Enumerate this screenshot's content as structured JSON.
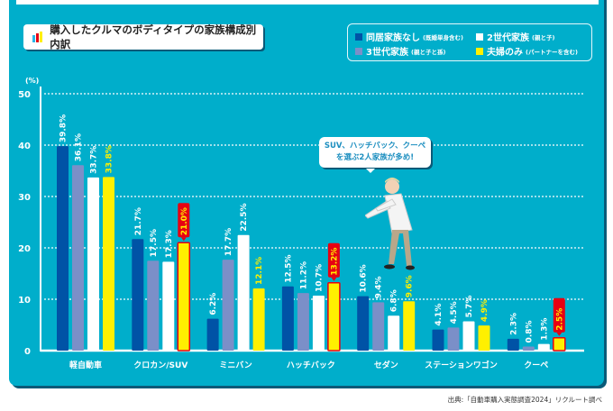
{
  "title": "購入したクルマのボディタイプの家族構成別内訳",
  "legend": [
    {
      "label": "同居家族なし",
      "note": "(既婚単身含む)",
      "color": "#0053a6"
    },
    {
      "label": "2世代家族",
      "note": "(親と子)",
      "color": "#ffffff"
    },
    {
      "label": "3世代家族",
      "note": "(親と子と孫)",
      "color": "#7b8fc8"
    },
    {
      "label": "夫婦のみ",
      "note": "(パートナーを含む)",
      "color": "#fff000"
    }
  ],
  "callout": {
    "line1": "SUV、ハッチバック、クーペ",
    "line2": "を選ぶ2人家族が多め!"
  },
  "source": "出典:「自動車購入実態調査2024」リクルート調べ",
  "chart_data": {
    "type": "bar",
    "title": "購入したクルマのボディタイプの家族構成別内訳",
    "ylabel": "(%)",
    "ylim": [
      0,
      50
    ],
    "yticks": [
      "0",
      "10",
      "20",
      "30",
      "40",
      "50"
    ],
    "grid": true,
    "legend_position": "top-right",
    "categories": [
      "軽自動車",
      "クロカン/SUV",
      "ミニバン",
      "ハッチバック",
      "セダン",
      "ステーションワゴン",
      "クーペ"
    ],
    "series": [
      {
        "name": "同居家族なし",
        "color": "#0053a6",
        "values": [
          39.8,
          21.7,
          6.2,
          12.5,
          10.6,
          4.1,
          2.3
        ]
      },
      {
        "name": "3世代家族",
        "color": "#7b8fc8",
        "values": [
          36.1,
          17.5,
          17.7,
          11.2,
          9.4,
          4.5,
          0.8
        ]
      },
      {
        "name": "2世代家族",
        "color": "#ffffff",
        "values": [
          33.7,
          17.3,
          22.5,
          10.7,
          6.8,
          5.7,
          1.3
        ]
      },
      {
        "name": "夫婦のみ",
        "color": "#fff000",
        "values": [
          33.8,
          21.0,
          12.1,
          13.2,
          9.6,
          4.9,
          2.5
        ]
      }
    ],
    "highlighted": [
      {
        "series": "夫婦のみ",
        "category": "クロカン/SUV"
      },
      {
        "series": "夫婦のみ",
        "category": "ハッチバック"
      },
      {
        "series": "夫婦のみ",
        "category": "クーペ"
      }
    ],
    "value_suffix": "%"
  }
}
